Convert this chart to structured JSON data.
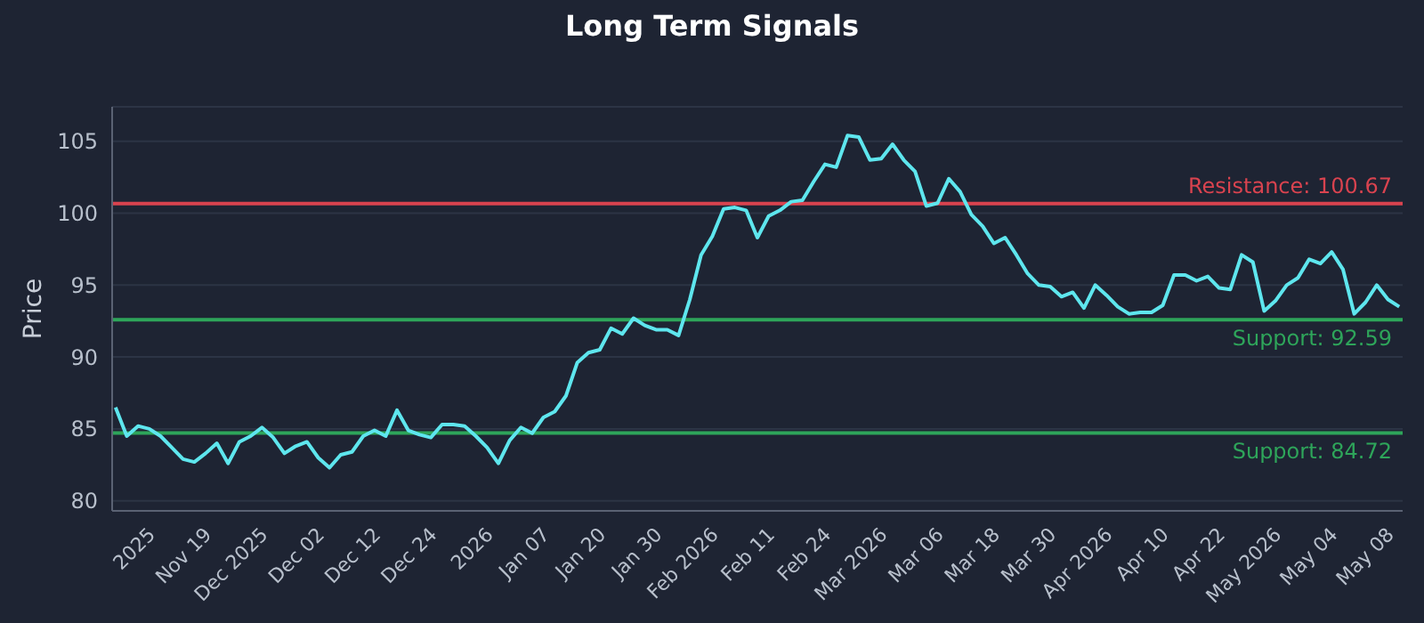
{
  "chart_data": {
    "type": "line",
    "title": "Long Term Signals",
    "ylabel": "Price",
    "categories": [
      null,
      null,
      null,
      "2025",
      null,
      null,
      null,
      null,
      "Nov 19",
      null,
      null,
      null,
      null,
      "Dec 2025",
      null,
      null,
      null,
      null,
      "Dec 02",
      null,
      null,
      null,
      null,
      "Dec 12",
      null,
      null,
      null,
      null,
      "Dec 24",
      null,
      null,
      null,
      null,
      "2026",
      null,
      null,
      null,
      null,
      "Jan 07",
      null,
      null,
      null,
      null,
      "Jan 20",
      null,
      null,
      null,
      null,
      "Jan 30",
      null,
      null,
      null,
      null,
      "Feb 2026",
      null,
      null,
      null,
      null,
      "Feb 11",
      null,
      null,
      null,
      null,
      "Feb 24",
      null,
      null,
      null,
      null,
      "Mar 2026",
      null,
      null,
      null,
      null,
      "Mar 06",
      null,
      null,
      null,
      null,
      "Mar 18",
      null,
      null,
      null,
      null,
      "Mar 30",
      null,
      null,
      null,
      null,
      "Apr 2026",
      null,
      null,
      null,
      null,
      "Apr 10",
      null,
      null,
      null,
      null,
      "Apr 22",
      null,
      null,
      null,
      null,
      "May 2026",
      null,
      null,
      null,
      null,
      "May 04",
      null,
      null,
      null,
      null,
      "May 08",
      null
    ],
    "series": [
      {
        "color": "#5ee6ee",
        "values": [
          86.5,
          84.5,
          85.2,
          85,
          84.5,
          83.7,
          82.9,
          82.7,
          83.3,
          84,
          82.6,
          84.1,
          84.5,
          85.1,
          84.4,
          83.3,
          83.8,
          84.1,
          83,
          82.3,
          83.2,
          83.4,
          84.5,
          84.9,
          84.5,
          86.3,
          84.9,
          84.6,
          84.4,
          85.3,
          85.3,
          85.2,
          84.5,
          83.7,
          82.6,
          84.2,
          85.1,
          84.7,
          85.8,
          86.2,
          87.3,
          89.6,
          90.3,
          90.5,
          92,
          91.6,
          92.7,
          92.2,
          91.9,
          91.9,
          91.5,
          94,
          97.1,
          98.4,
          100.3,
          100.4,
          100.2,
          98.3,
          99.8,
          100.2,
          100.8,
          100.9,
          102.2,
          103.4,
          103.2,
          105.4,
          105.3,
          103.7,
          103.8,
          104.8,
          103.7,
          102.9,
          100.5,
          100.7,
          102.4,
          101.5,
          99.9,
          99.1,
          97.9,
          98.3,
          97.1,
          95.8,
          95,
          94.9,
          94.2,
          94.5,
          93.4,
          95,
          94.3,
          93.5,
          93,
          93.1,
          93.1,
          93.6,
          95.7,
          95.7,
          95.3,
          95.6,
          94.8,
          94.7,
          97.1,
          96.6,
          93.2,
          93.9,
          95,
          95.5,
          96.8,
          96.5,
          97.3,
          96.1,
          93,
          93.8,
          95,
          94,
          93.5
        ]
      }
    ],
    "ylim": [
      79.3,
      107.4
    ],
    "yticks": [
      80,
      85,
      90,
      95,
      100,
      105
    ],
    "grid": "y",
    "marker": "none",
    "line_style": "solid",
    "ref_lines": [
      {
        "axis": "y",
        "value": 100.67,
        "label": "Resistance: 100.67",
        "color": "#d9434f"
      },
      {
        "axis": "y",
        "value": 92.59,
        "label": "Support: 92.59",
        "color": "#2ea55a"
      },
      {
        "axis": "y",
        "value": 84.72,
        "label": "Support: 84.72",
        "color": "#2ea55a"
      }
    ]
  }
}
